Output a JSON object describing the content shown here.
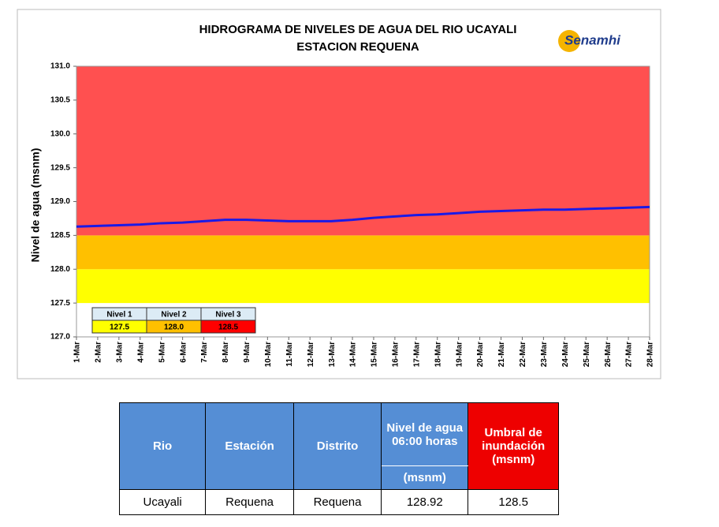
{
  "chart_data": {
    "type": "line",
    "title": "HIDROGRAMA DE NIVELES DE AGUA DEL RIO UCAYALI",
    "subtitle": "ESTACION REQUENA",
    "logo": "Senamhi",
    "y_label": "Nivel de agua  (msnm)",
    "categories": [
      "1-Mar",
      "2-Mar",
      "3-Mar",
      "4-Mar",
      "5-Mar",
      "6-Mar",
      "7-Mar",
      "8-Mar",
      "9-Mar",
      "10-Mar",
      "11-Mar",
      "12-Mar",
      "13-Mar",
      "14-Mar",
      "15-Mar",
      "16-Mar",
      "17-Mar",
      "18-Mar",
      "19-Mar",
      "20-Mar",
      "21-Mar",
      "22-Mar",
      "23-Mar",
      "24-Mar",
      "25-Mar",
      "26-Mar",
      "27-Mar",
      "28-Mar"
    ],
    "series": [
      {
        "name": "Nivel de agua",
        "color": "#1a1ae6",
        "values": [
          128.63,
          128.64,
          128.65,
          128.66,
          128.68,
          128.69,
          128.71,
          128.73,
          128.73,
          128.72,
          128.71,
          128.71,
          128.71,
          128.73,
          128.76,
          128.78,
          128.8,
          128.81,
          128.83,
          128.85,
          128.86,
          128.87,
          128.88,
          128.88,
          128.89,
          128.9,
          128.91,
          128.92
        ]
      }
    ],
    "levels": [
      {
        "name": "Nivel 1",
        "value": 127.5,
        "label": "127.5",
        "color": "#ffff00"
      },
      {
        "name": "Nivel 2",
        "value": 128,
        "label": "128.0",
        "color": "#ffc000"
      },
      {
        "name": "Nivel 3",
        "value": 128.5,
        "label": "128.5",
        "color": "#ff5050"
      }
    ],
    "ylim": [
      127,
      131
    ],
    "yticks": [
      {
        "value": 127,
        "label": "127.0"
      },
      {
        "value": 127.5,
        "label": "127.5"
      },
      {
        "value": 128,
        "label": "128.0"
      },
      {
        "value": 128.5,
        "label": "128.5"
      },
      {
        "value": 129,
        "label": "129.0"
      },
      {
        "value": 129.5,
        "label": "129.5"
      },
      {
        "value": 130,
        "label": "130.0"
      },
      {
        "value": 130.5,
        "label": "130.5"
      },
      {
        "value": 131,
        "label": "131.0"
      }
    ]
  },
  "table": {
    "header": [
      "Rio",
      "Estación",
      "Distrito",
      "Nivel de agua 06:00 horas",
      "Umbral de inundación (msnm)"
    ],
    "subheader": "(msnm)",
    "rows": [
      [
        "Ucayali",
        "Requena",
        "Requena",
        "128.92",
        "128.5"
      ]
    ]
  }
}
